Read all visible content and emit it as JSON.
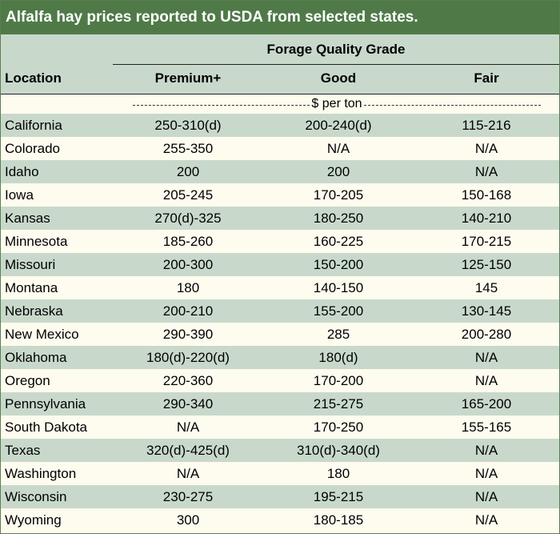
{
  "title": "Alfalfa hay prices reported to USDA from selected states.",
  "header": {
    "group_label": "Forage Quality Grade",
    "location": "Location",
    "premium": "Premium+",
    "good": "Good",
    "fair": "Fair"
  },
  "units_label": "$ per ton",
  "rows": [
    {
      "location": "California",
      "premium": "250-310(d)",
      "good": "200-240(d)",
      "fair": "115-216"
    },
    {
      "location": "Colorado",
      "premium": "255-350",
      "good": "N/A",
      "fair": "N/A"
    },
    {
      "location": "Idaho",
      "premium": "200",
      "good": "200",
      "fair": "N/A"
    },
    {
      "location": "Iowa",
      "premium": "205-245",
      "good": "170-205",
      "fair": "150-168"
    },
    {
      "location": "Kansas",
      "premium": "270(d)-325",
      "good": "180-250",
      "fair": "140-210"
    },
    {
      "location": "Minnesota",
      "premium": "185-260",
      "good": "160-225",
      "fair": "170-215"
    },
    {
      "location": "Missouri",
      "premium": "200-300",
      "good": "150-200",
      "fair": "125-150"
    },
    {
      "location": "Montana",
      "premium": "180",
      "good": "140-150",
      "fair": "145"
    },
    {
      "location": "Nebraska",
      "premium": "200-210",
      "good": "155-200",
      "fair": "130-145"
    },
    {
      "location": "New Mexico",
      "premium": "290-390",
      "good": "285",
      "fair": "200-280"
    },
    {
      "location": "Oklahoma",
      "premium": "180(d)-220(d)",
      "good": "180(d)",
      "fair": "N/A"
    },
    {
      "location": "Oregon",
      "premium": "220-360",
      "good": "170-200",
      "fair": "N/A"
    },
    {
      "location": "Pennsylvania",
      "premium": "290-340",
      "good": "215-275",
      "fair": "165-200"
    },
    {
      "location": "South Dakota",
      "premium": "N/A",
      "good": "170-250",
      "fair": "155-165"
    },
    {
      "location": "Texas",
      "premium": "320(d)-425(d)",
      "good": "310(d)-340(d)",
      "fair": "N/A"
    },
    {
      "location": "Washington",
      "premium": "N/A",
      "good": "180",
      "fair": "N/A"
    },
    {
      "location": "Wisconsin",
      "premium": "230-275",
      "good": "195-215",
      "fair": "N/A"
    },
    {
      "location": "Wyoming",
      "premium": "300",
      "good": "180-185",
      "fair": "N/A"
    }
  ],
  "colors": {
    "title_bg": "#4f7a48",
    "shaded_row": "#c8d9cc",
    "light_row": "#fefbef"
  }
}
